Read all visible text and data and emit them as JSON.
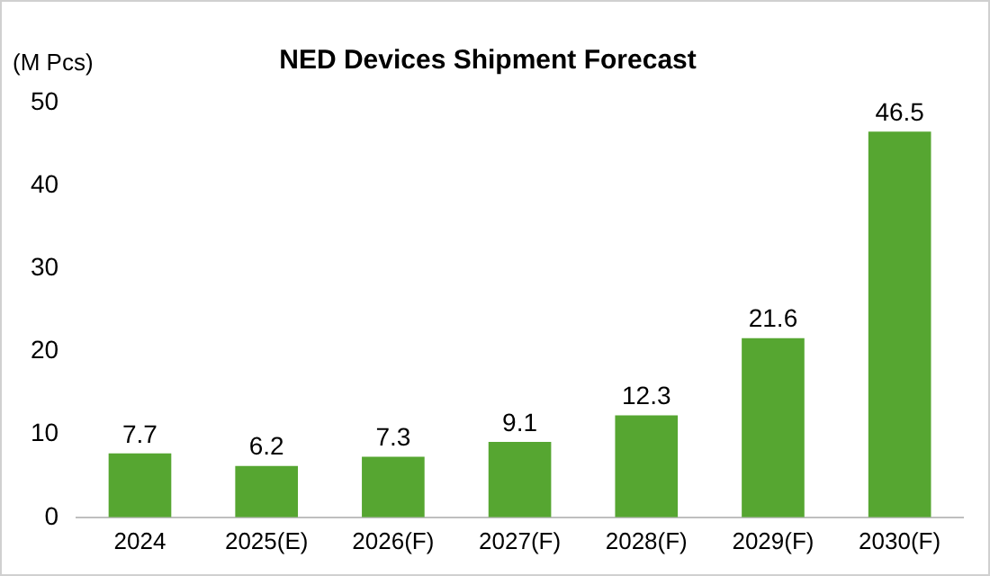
{
  "chart_data": {
    "type": "bar",
    "title": "NED Devices Shipment Forecast",
    "ylabel": "(M Pcs)",
    "categories": [
      "2024",
      "2025(E)",
      "2026(F)",
      "2027(F)",
      "2028(F)",
      "2029(F)",
      "2030(F)"
    ],
    "values": [
      7.7,
      6.2,
      7.3,
      9.1,
      12.3,
      21.6,
      46.5
    ],
    "color": "#56a631",
    "ylim": [
      0,
      50
    ],
    "yticks": [
      0,
      10,
      20,
      30,
      40,
      50
    ],
    "data_labels": true
  }
}
